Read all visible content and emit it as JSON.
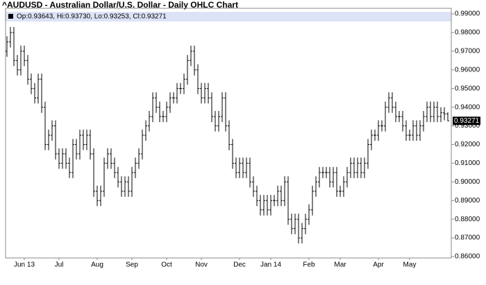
{
  "chart_data": {
    "type": "ohlc",
    "title": "^AUDUSD - Australian Dollar/U.S. Dollar - Daily OHLC Chart",
    "legend_text": "Op:0.93643, Hi:0.93730, Lo:0.93253, Cl:0.93271",
    "last_label": "0.93271",
    "color": "#000000",
    "grid": false,
    "categories": [
      null,
      null,
      null,
      null,
      null,
      "Jun 13",
      null,
      null,
      null,
      null,
      null,
      null,
      null,
      null,
      null,
      "Jul",
      null,
      null,
      null,
      null,
      null,
      null,
      null,
      null,
      null,
      null,
      "Aug",
      null,
      null,
      null,
      null,
      null,
      null,
      null,
      null,
      null,
      "Sep",
      null,
      null,
      null,
      null,
      null,
      null,
      null,
      null,
      null,
      "Oct",
      null,
      null,
      null,
      null,
      null,
      null,
      null,
      null,
      null,
      "Nov",
      null,
      null,
      null,
      null,
      null,
      null,
      null,
      null,
      null,
      null,
      "Dec",
      null,
      null,
      null,
      null,
      null,
      null,
      null,
      null,
      "Jan 14",
      null,
      null,
      null,
      null,
      null,
      null,
      null,
      null,
      null,
      null,
      "Feb",
      null,
      null,
      null,
      null,
      null,
      null,
      null,
      null,
      "Mar",
      null,
      null,
      null,
      null,
      null,
      null,
      null,
      null,
      null,
      null,
      "Apr",
      null,
      null,
      null,
      null,
      null,
      null,
      null,
      null,
      "May",
      null,
      null,
      null,
      null,
      null,
      null,
      null,
      null,
      null,
      null,
      null
    ],
    "open": [
      0.97,
      0.975,
      0.98,
      0.965,
      0.96,
      0.97,
      0.965,
      0.955,
      0.95,
      0.945,
      0.955,
      0.94,
      0.92,
      0.925,
      0.93,
      0.915,
      0.91,
      0.915,
      0.91,
      0.905,
      0.92,
      0.915,
      0.925,
      0.92,
      0.925,
      0.915,
      0.895,
      0.89,
      0.895,
      0.91,
      0.915,
      0.91,
      0.905,
      0.9,
      0.895,
      0.9,
      0.895,
      0.905,
      0.91,
      0.915,
      0.925,
      0.93,
      0.935,
      0.945,
      0.94,
      0.935,
      0.935,
      0.94,
      0.945,
      0.945,
      0.95,
      0.95,
      0.955,
      0.965,
      0.97,
      0.96,
      0.95,
      0.945,
      0.95,
      0.945,
      0.935,
      0.93,
      0.935,
      0.945,
      0.93,
      0.92,
      0.91,
      0.905,
      0.91,
      0.905,
      0.91,
      0.9,
      0.895,
      0.89,
      0.885,
      0.89,
      0.885,
      0.89,
      0.89,
      0.895,
      0.89,
      0.9,
      0.88,
      0.875,
      0.88,
      0.87,
      0.875,
      0.88,
      0.885,
      0.895,
      0.9,
      0.905,
      0.905,
      0.905,
      0.9,
      0.905,
      0.895,
      0.895,
      0.9,
      0.905,
      0.91,
      0.905,
      0.91,
      0.905,
      0.91,
      0.92,
      0.925,
      0.925,
      0.93,
      0.93,
      0.94,
      0.945,
      0.94,
      0.935,
      0.935,
      0.93,
      0.925,
      0.925,
      0.93,
      0.925,
      0.93,
      0.935,
      0.94,
      0.935,
      0.94,
      0.935,
      0.937,
      0.93643
    ],
    "high": [
      0.978,
      0.983,
      0.983,
      0.968,
      0.973,
      0.973,
      0.968,
      0.958,
      0.953,
      0.958,
      0.958,
      0.943,
      0.928,
      0.933,
      0.933,
      0.918,
      0.918,
      0.918,
      0.913,
      0.923,
      0.923,
      0.928,
      0.928,
      0.928,
      0.928,
      0.918,
      0.898,
      0.898,
      0.913,
      0.918,
      0.918,
      0.913,
      0.908,
      0.903,
      0.903,
      0.903,
      0.908,
      0.913,
      0.918,
      0.928,
      0.933,
      0.938,
      0.948,
      0.948,
      0.943,
      0.938,
      0.943,
      0.948,
      0.948,
      0.953,
      0.953,
      0.958,
      0.968,
      0.973,
      0.973,
      0.963,
      0.953,
      0.953,
      0.953,
      0.948,
      0.938,
      0.938,
      0.948,
      0.948,
      0.933,
      0.923,
      0.913,
      0.913,
      0.913,
      0.913,
      0.913,
      0.903,
      0.898,
      0.893,
      0.893,
      0.893,
      0.893,
      0.893,
      0.898,
      0.898,
      0.903,
      0.903,
      0.883,
      0.883,
      0.883,
      0.878,
      0.883,
      0.888,
      0.898,
      0.903,
      0.908,
      0.908,
      0.908,
      0.908,
      0.908,
      0.908,
      0.898,
      0.903,
      0.908,
      0.913,
      0.913,
      0.913,
      0.913,
      0.913,
      0.923,
      0.928,
      0.928,
      0.933,
      0.933,
      0.943,
      0.948,
      0.948,
      0.943,
      0.938,
      0.938,
      0.933,
      0.928,
      0.933,
      0.933,
      0.933,
      0.938,
      0.943,
      0.943,
      0.943,
      0.943,
      0.94,
      0.94,
      0.9373
    ],
    "low": [
      0.967,
      0.972,
      0.962,
      0.957,
      0.957,
      0.962,
      0.952,
      0.947,
      0.942,
      0.942,
      0.937,
      0.917,
      0.917,
      0.922,
      0.912,
      0.907,
      0.907,
      0.907,
      0.902,
      0.902,
      0.912,
      0.912,
      0.917,
      0.917,
      0.912,
      0.892,
      0.887,
      0.887,
      0.892,
      0.907,
      0.907,
      0.902,
      0.897,
      0.892,
      0.892,
      0.892,
      0.892,
      0.902,
      0.907,
      0.912,
      0.922,
      0.927,
      0.932,
      0.937,
      0.932,
      0.932,
      0.932,
      0.937,
      0.942,
      0.942,
      0.947,
      0.947,
      0.952,
      0.962,
      0.957,
      0.947,
      0.942,
      0.942,
      0.942,
      0.932,
      0.927,
      0.927,
      0.932,
      0.927,
      0.917,
      0.907,
      0.902,
      0.902,
      0.902,
      0.902,
      0.897,
      0.892,
      0.887,
      0.882,
      0.882,
      0.882,
      0.882,
      0.887,
      0.887,
      0.887,
      0.887,
      0.877,
      0.872,
      0.872,
      0.867,
      0.867,
      0.872,
      0.877,
      0.882,
      0.892,
      0.897,
      0.902,
      0.902,
      0.897,
      0.897,
      0.892,
      0.892,
      0.892,
      0.897,
      0.902,
      0.902,
      0.902,
      0.902,
      0.902,
      0.907,
      0.917,
      0.922,
      0.922,
      0.927,
      0.927,
      0.937,
      0.937,
      0.932,
      0.932,
      0.927,
      0.922,
      0.922,
      0.922,
      0.922,
      0.922,
      0.927,
      0.932,
      0.932,
      0.932,
      0.932,
      0.932,
      0.933,
      0.93253
    ],
    "close": [
      0.975,
      0.98,
      0.965,
      0.96,
      0.97,
      0.965,
      0.955,
      0.95,
      0.945,
      0.955,
      0.94,
      0.92,
      0.925,
      0.93,
      0.915,
      0.91,
      0.915,
      0.91,
      0.905,
      0.92,
      0.915,
      0.925,
      0.92,
      0.925,
      0.915,
      0.895,
      0.89,
      0.895,
      0.91,
      0.915,
      0.91,
      0.905,
      0.9,
      0.895,
      0.9,
      0.895,
      0.905,
      0.91,
      0.915,
      0.925,
      0.93,
      0.935,
      0.945,
      0.94,
      0.935,
      0.935,
      0.94,
      0.945,
      0.945,
      0.95,
      0.95,
      0.955,
      0.965,
      0.97,
      0.96,
      0.95,
      0.945,
      0.95,
      0.945,
      0.935,
      0.93,
      0.935,
      0.945,
      0.93,
      0.92,
      0.91,
      0.905,
      0.91,
      0.905,
      0.91,
      0.9,
      0.895,
      0.89,
      0.885,
      0.89,
      0.885,
      0.89,
      0.89,
      0.895,
      0.89,
      0.9,
      0.88,
      0.875,
      0.88,
      0.87,
      0.875,
      0.88,
      0.885,
      0.895,
      0.9,
      0.905,
      0.905,
      0.905,
      0.9,
      0.905,
      0.895,
      0.895,
      0.9,
      0.905,
      0.91,
      0.905,
      0.91,
      0.905,
      0.91,
      0.92,
      0.925,
      0.925,
      0.93,
      0.93,
      0.94,
      0.945,
      0.94,
      0.935,
      0.935,
      0.93,
      0.925,
      0.925,
      0.93,
      0.925,
      0.93,
      0.935,
      0.94,
      0.935,
      0.94,
      0.935,
      0.937,
      0.93643,
      0.93271
    ],
    "ylim": [
      0.86,
      0.99
    ],
    "yticks": [
      {
        "value": 0.86,
        "label": "0.86000"
      },
      {
        "value": 0.87,
        "label": "0.87000"
      },
      {
        "value": 0.88,
        "label": "0.88000"
      },
      {
        "value": 0.89,
        "label": "0.89000"
      },
      {
        "value": 0.9,
        "label": "0.90000"
      },
      {
        "value": 0.91,
        "label": "0.91000"
      },
      {
        "value": 0.92,
        "label": "0.92000"
      },
      {
        "value": 0.93,
        "label": "0.93000"
      },
      {
        "value": 0.94,
        "label": "0.94000"
      },
      {
        "value": 0.95,
        "label": "0.95000"
      },
      {
        "value": 0.96,
        "label": "0.96000"
      },
      {
        "value": 0.97,
        "label": "0.97000"
      },
      {
        "value": 0.98,
        "label": "0.98000"
      },
      {
        "value": 0.99,
        "label": "0.99000"
      }
    ]
  }
}
